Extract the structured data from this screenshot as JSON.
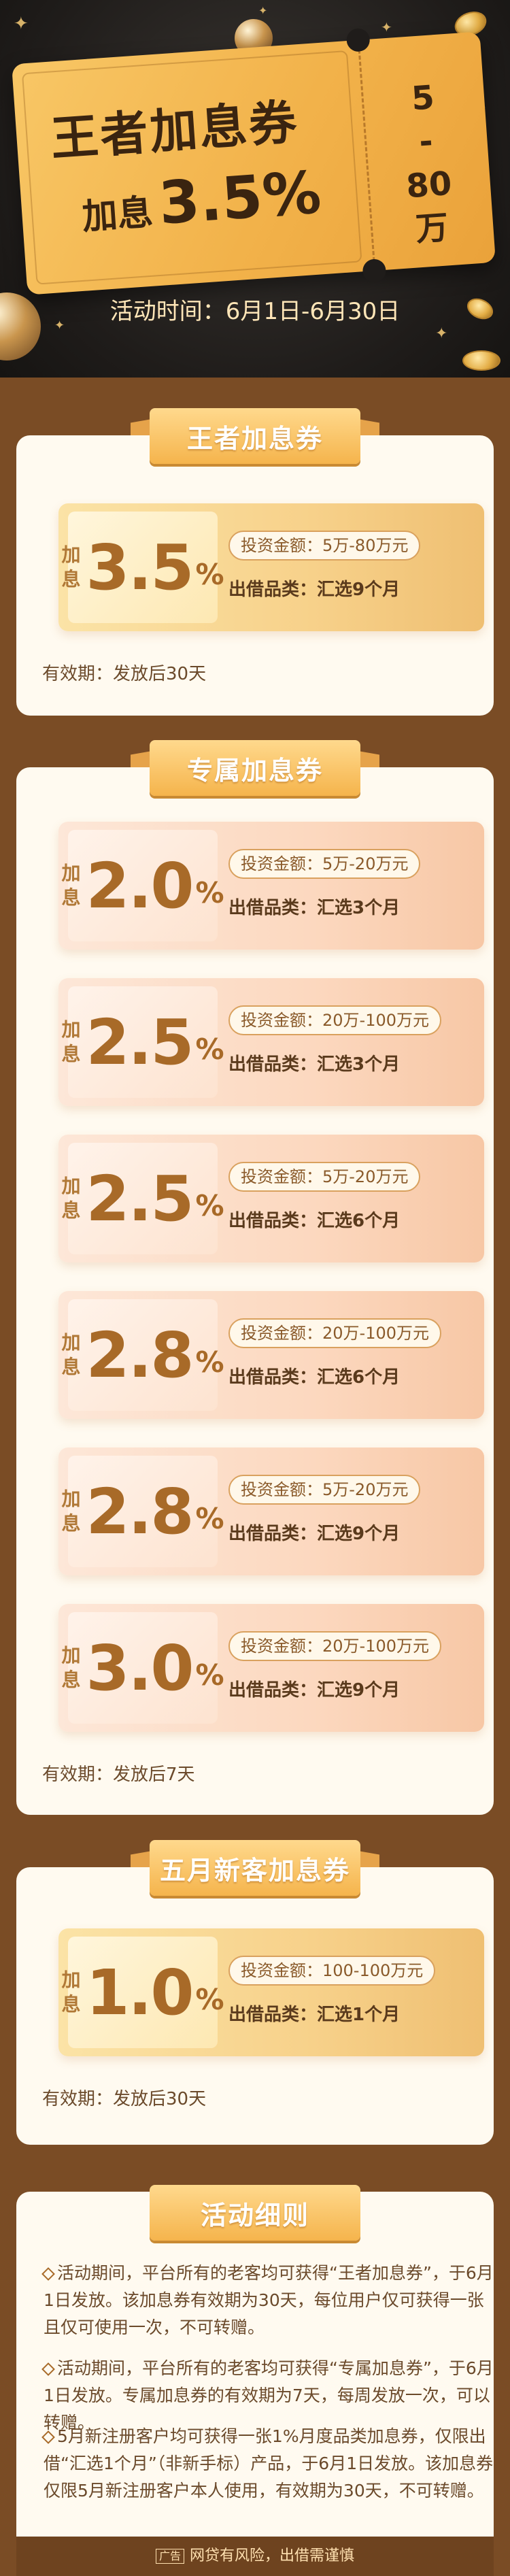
{
  "hero": {
    "title": "王者加息券",
    "rate_label": "加息",
    "rate_value": "3.5%",
    "range_top": "5",
    "range_sep": "-",
    "range_bottom": "80",
    "range_unit": "万",
    "time_label": "活动时间：",
    "time_value": "6月1日-6月30日"
  },
  "sections": [
    {
      "title": "王者加息券",
      "coupons": [
        {
          "label": "加息",
          "rate": "3.5",
          "pct": "%",
          "amount": "投资金额：5万-80万元",
          "product": "出借品类：汇选9个月",
          "style": "gold"
        }
      ],
      "validity": "有效期：发放后30天"
    },
    {
      "title": "专属加息券",
      "coupons": [
        {
          "label": "加息",
          "rate": "2.0",
          "pct": "%",
          "amount": "投资金额：5万-20万元",
          "product": "出借品类：汇选3个月",
          "style": "peach"
        },
        {
          "label": "加息",
          "rate": "2.5",
          "pct": "%",
          "amount": "投资金额：20万-100万元",
          "product": "出借品类：汇选3个月",
          "style": "peach"
        },
        {
          "label": "加息",
          "rate": "2.5",
          "pct": "%",
          "amount": "投资金额：5万-20万元",
          "product": "出借品类：汇选6个月",
          "style": "peach"
        },
        {
          "label": "加息",
          "rate": "2.8",
          "pct": "%",
          "amount": "投资金额：20万-100万元",
          "product": "出借品类：汇选6个月",
          "style": "peach"
        },
        {
          "label": "加息",
          "rate": "2.8",
          "pct": "%",
          "amount": "投资金额：5万-20万元",
          "product": "出借品类：汇选9个月",
          "style": "peach"
        },
        {
          "label": "加息",
          "rate": "3.0",
          "pct": "%",
          "amount": "投资金额：20万-100万元",
          "product": "出借品类：汇选9个月",
          "style": "peach"
        }
      ],
      "validity": "有效期：发放后7天"
    },
    {
      "title": "五月新客加息券",
      "coupons": [
        {
          "label": "加息",
          "rate": "1.0",
          "pct": "%",
          "amount": "投资金额：100-100万元",
          "product": "出借品类：汇选1个月",
          "style": "gold"
        }
      ],
      "validity": "有效期：发放后30天"
    }
  ],
  "details": {
    "title": "活动细则",
    "rules": [
      "活动期间，平台所有的老客均可获得“王者加息券”，于6月1日发放。该加息券有效期为30天，每位用户仅可获得一张且仅可使用一次，不可转赠。",
      "活动期间，平台所有的老客均可获得“专属加息券”，于6月1日发放。专属加息券的有效期为7天，每周发放一次，可以转赠。",
      "5月新注册客户均可获得一张1%月度品类加息券，仅限出借“汇选1个月”（非新手标）产品，于6月1日发放。该加息券仅限5月新注册客户本人使用，有效期为30天，不可转赠。"
    ]
  },
  "footer": {
    "ad_tag": "广告",
    "risk": "网贷有风险，出借需谨慎"
  },
  "colors": {
    "brown_bg": "#7a4c25",
    "gold": "#f5b44c",
    "peach": "#fcd8bf",
    "text_dark": "#5a3a1c"
  }
}
